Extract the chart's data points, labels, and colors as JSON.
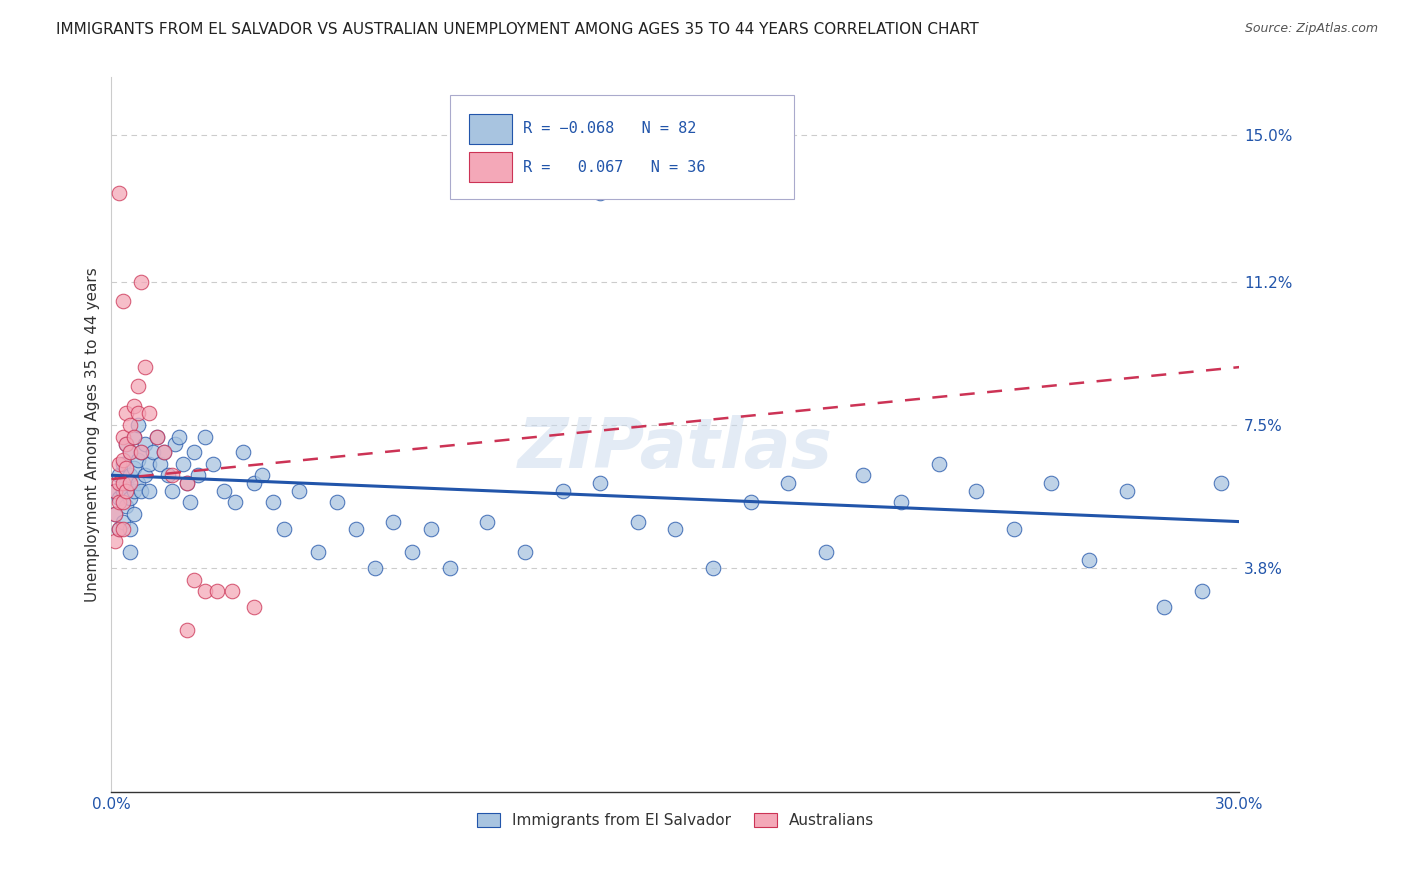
{
  "title": "IMMIGRANTS FROM EL SALVADOR VS AUSTRALIAN UNEMPLOYMENT AMONG AGES 35 TO 44 YEARS CORRELATION CHART",
  "source": "Source: ZipAtlas.com",
  "ylabel": "Unemployment Among Ages 35 to 44 years",
  "xlim": [
    0.0,
    0.3
  ],
  "ylim": [
    -0.02,
    0.165
  ],
  "blue_color": "#a8c4e0",
  "pink_color": "#f4a8b8",
  "blue_line_color": "#2255aa",
  "pink_line_color": "#cc3355",
  "watermark": "ZIPatlas",
  "blue_line_x0": 0.0,
  "blue_line_y0": 0.062,
  "blue_line_x1": 0.3,
  "blue_line_y1": 0.05,
  "pink_line_x0": 0.0,
  "pink_line_y0": 0.061,
  "pink_line_x1": 0.3,
  "pink_line_y1": 0.09,
  "blue_x": [
    0.001,
    0.001,
    0.002,
    0.002,
    0.002,
    0.003,
    0.003,
    0.003,
    0.004,
    0.004,
    0.004,
    0.005,
    0.005,
    0.005,
    0.005,
    0.005,
    0.006,
    0.006,
    0.006,
    0.006,
    0.007,
    0.007,
    0.007,
    0.008,
    0.008,
    0.009,
    0.009,
    0.01,
    0.01,
    0.011,
    0.012,
    0.013,
    0.014,
    0.015,
    0.016,
    0.017,
    0.018,
    0.019,
    0.02,
    0.021,
    0.022,
    0.023,
    0.025,
    0.027,
    0.03,
    0.033,
    0.035,
    0.038,
    0.04,
    0.043,
    0.046,
    0.05,
    0.055,
    0.06,
    0.065,
    0.07,
    0.075,
    0.08,
    0.085,
    0.09,
    0.1,
    0.11,
    0.12,
    0.13,
    0.14,
    0.15,
    0.16,
    0.17,
    0.18,
    0.19,
    0.2,
    0.21,
    0.22,
    0.23,
    0.24,
    0.25,
    0.26,
    0.27,
    0.28,
    0.29,
    0.295,
    0.13
  ],
  "blue_y": [
    0.058,
    0.052,
    0.062,
    0.056,
    0.048,
    0.065,
    0.058,
    0.05,
    0.07,
    0.06,
    0.054,
    0.068,
    0.062,
    0.056,
    0.048,
    0.042,
    0.072,
    0.064,
    0.058,
    0.052,
    0.075,
    0.066,
    0.06,
    0.068,
    0.058,
    0.07,
    0.062,
    0.065,
    0.058,
    0.068,
    0.072,
    0.065,
    0.068,
    0.062,
    0.058,
    0.07,
    0.072,
    0.065,
    0.06,
    0.055,
    0.068,
    0.062,
    0.072,
    0.065,
    0.058,
    0.055,
    0.068,
    0.06,
    0.062,
    0.055,
    0.048,
    0.058,
    0.042,
    0.055,
    0.048,
    0.038,
    0.05,
    0.042,
    0.048,
    0.038,
    0.05,
    0.042,
    0.058,
    0.06,
    0.05,
    0.048,
    0.038,
    0.055,
    0.06,
    0.042,
    0.062,
    0.055,
    0.065,
    0.058,
    0.048,
    0.06,
    0.04,
    0.058,
    0.028,
    0.032,
    0.06,
    0.135
  ],
  "pink_x": [
    0.001,
    0.001,
    0.001,
    0.002,
    0.002,
    0.002,
    0.002,
    0.003,
    0.003,
    0.003,
    0.003,
    0.003,
    0.004,
    0.004,
    0.004,
    0.004,
    0.005,
    0.005,
    0.005,
    0.006,
    0.006,
    0.007,
    0.007,
    0.008,
    0.008,
    0.009,
    0.01,
    0.012,
    0.014,
    0.016,
    0.02,
    0.022,
    0.025,
    0.028,
    0.032,
    0.038
  ],
  "pink_y": [
    0.058,
    0.052,
    0.045,
    0.065,
    0.06,
    0.055,
    0.048,
    0.072,
    0.066,
    0.06,
    0.055,
    0.048,
    0.078,
    0.07,
    0.064,
    0.058,
    0.075,
    0.068,
    0.06,
    0.08,
    0.072,
    0.085,
    0.078,
    0.112,
    0.068,
    0.09,
    0.078,
    0.072,
    0.068,
    0.062,
    0.06,
    0.035,
    0.032,
    0.032,
    0.032,
    0.028
  ]
}
